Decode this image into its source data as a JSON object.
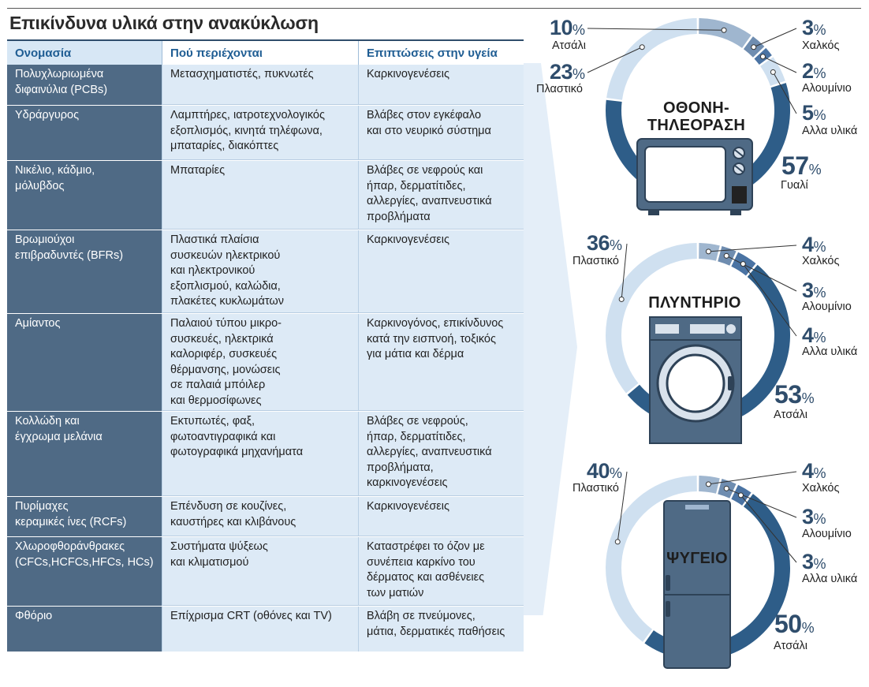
{
  "title": "Επικίνδυνα υλικά στην ανακύκλωση",
  "table": {
    "headers": [
      "Ονομασία",
      "Πού περιέχονται",
      "Επιπτώσεις στην υγεία"
    ],
    "rows": [
      {
        "name": "Πολυχλωριωμένα\nδιφαινύλια (PCBs)",
        "where": "Μετασχηματιστές, πυκνωτές",
        "effects": "Καρκινογενέσεις"
      },
      {
        "name": "Υδράργυρος",
        "where": "Λαμπτήρες, ιατροτεχνολογικός\nεξοπλισμός, κινητά τηλέφωνα,\nμπαταρίες, διακόπτες",
        "effects": "Βλάβες στον εγκέφαλο\nκαι στο νευρικό σύστημα"
      },
      {
        "name": "Νικέλιο, κάδμιο,\nμόλυβδος",
        "where": "Μπαταρίες",
        "effects": "Βλάβες σε νεφρούς και\nήπαρ, δερματίτιδες,\nαλλεργίες, αναπνευστικά\nπροβλήματα"
      },
      {
        "name": "Βρωμιούχοι\nεπιβραδυντές (BFRs)",
        "where": "Πλαστικά πλαίσια\nσυσκευών ηλεκτρικού\nκαι ηλεκτρονικού\nεξοπλισμού, καλώδια,\nπλακέτες κυκλωμάτων",
        "effects": "Καρκινογενέσεις"
      },
      {
        "name": "Αμίαντος",
        "where": "Παλαιού τύπου μικρο-\nσυσκευές, ηλεκτρικά\nκαλοριφέρ, συσκευές\nθέρμανσης, μονώσεις\nσε παλαιά μπόιλερ\nκαι θερμοσίφωνες",
        "effects": "Καρκινογόνος, επικίνδυνος\nκατά την εισπνοή, τοξικός\nγια μάτια και δέρμα"
      },
      {
        "name": "Κολλώδη και\nέγχρωμα μελάνια",
        "where": "Εκτυπωτές, φαξ,\nφωτοαντιγραφικά και\nφωτογραφικά μηχανήματα",
        "effects": "Βλάβες σε νεφρούς,\nήπαρ, δερματίτιδες,\nαλλεργίες, αναπνευστικά\nπροβλήματα,\nκαρκινογενέσεις"
      },
      {
        "name": "Πυρίμαχες\nκεραμικές ίνες (RCFs)",
        "where": "Επένδυση σε κουζίνες,\nκαυστήρες και κλιβάνους",
        "effects": "Καρκινογενέσεις"
      },
      {
        "name": "Χλωροφθοράνθρακες\n(CFCs,HCFCs,HFCs, HCs)",
        "where": "Συστήματα ψύξεως\nκαι κλιματισμού",
        "effects": "Καταστρέφει το όζον με\nσυνέπεια καρκίνο του\nδέρματος και ασθένειες\nτων ματιών"
      },
      {
        "name": "Φθόριο",
        "where": "Επίχρισμα CRT (οθόνες και TV)",
        "effects": "Βλάβη σε πνεύμονες,\nμάτια, δερματικές παθήσεις"
      }
    ]
  },
  "chart_data": [
    {
      "type": "pie",
      "title": "ΟΘΟΝΗ-\nΤΗΛΕΟΡΑΣΗ",
      "slices": [
        {
          "label": "Ατσάλι",
          "value": 10,
          "color": "#9fb6cf"
        },
        {
          "label": "Χαλκός",
          "value": 3,
          "color": "#6f8db0"
        },
        {
          "label": "Αλουμίνιο",
          "value": 2,
          "color": "#4a73a3"
        },
        {
          "label": "Αλλα υλικά",
          "value": 5,
          "color": "#cfe0f0"
        },
        {
          "label": "Γυαλί",
          "value": 57,
          "color": "#2e5d88"
        },
        {
          "label": "Πλαστικό",
          "value": 23,
          "color": "#cfe0f0"
        }
      ]
    },
    {
      "type": "pie",
      "title": "ΠΛΥΝΤΗΡΙΟ",
      "slices": [
        {
          "label": "Χαλκός",
          "value": 4,
          "color": "#9fb6cf"
        },
        {
          "label": "Αλουμίνιο",
          "value": 3,
          "color": "#6f8db0"
        },
        {
          "label": "Αλλα υλικά",
          "value": 4,
          "color": "#4a73a3"
        },
        {
          "label": "Ατσάλι",
          "value": 53,
          "color": "#2e5d88"
        },
        {
          "label": "Πλαστικό",
          "value": 36,
          "color": "#cfe0f0"
        }
      ]
    },
    {
      "type": "pie",
      "title": "ΨΥΓΕΙΟ",
      "slices": [
        {
          "label": "Χαλκός",
          "value": 4,
          "color": "#9fb6cf"
        },
        {
          "label": "Αλουμίνιο",
          "value": 3,
          "color": "#6f8db0"
        },
        {
          "label": "Αλλα υλικά",
          "value": 3,
          "color": "#4a73a3"
        },
        {
          "label": "Ατσάλι",
          "value": 50,
          "color": "#2e5d88"
        },
        {
          "label": "Πλαστικό",
          "value": 40,
          "color": "#cfe0f0"
        }
      ]
    }
  ],
  "percent_symbol": "%"
}
